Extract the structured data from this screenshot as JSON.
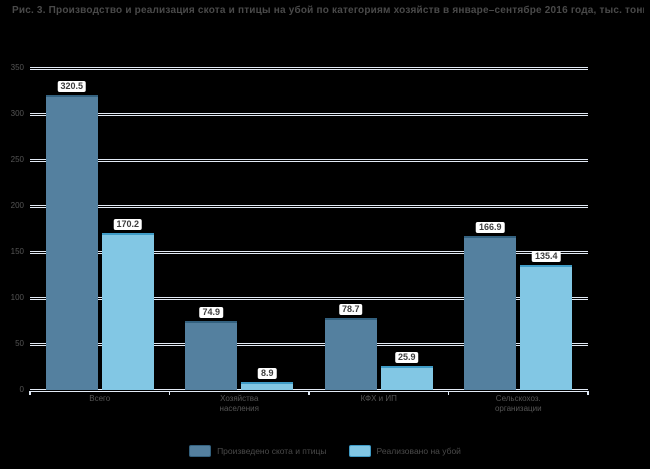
{
  "title": "Рис. 3. Производство и реализация скота и птицы на убой по категориям хозяйств в январе–сентябре 2016 года, тыс. тонн*",
  "chart_data": {
    "type": "bar",
    "categories": [
      "Всего",
      "Хозяйства\nнаселения",
      "КФХ и ИП",
      "Сельскохоз.\nорганизации"
    ],
    "series": [
      {
        "name": "Произведено скота и птицы",
        "color": "#54809f",
        "edge_color": "#33617f",
        "values": [
          320.5,
          74.9,
          78.7,
          166.9
        ]
      },
      {
        "name": "Реализовано на убой",
        "color": "#82c7e4",
        "edge_color": "#3f9cc7",
        "values": [
          170.2,
          8.9,
          25.9,
          135.4
        ]
      }
    ],
    "ylim": [
      0,
      350
    ],
    "yticks": [
      0,
      50,
      100,
      150,
      200,
      250,
      300,
      350
    ],
    "grid": true,
    "value_labels": true,
    "legend_position": "bottom"
  },
  "colors": {
    "background": "#000000",
    "gridline": "#e2eaf5",
    "axis_text": "#555555",
    "title_text": "#4a4a4a",
    "value_chip_bg": "#ffffff",
    "value_chip_text": "#3d3d3d"
  }
}
